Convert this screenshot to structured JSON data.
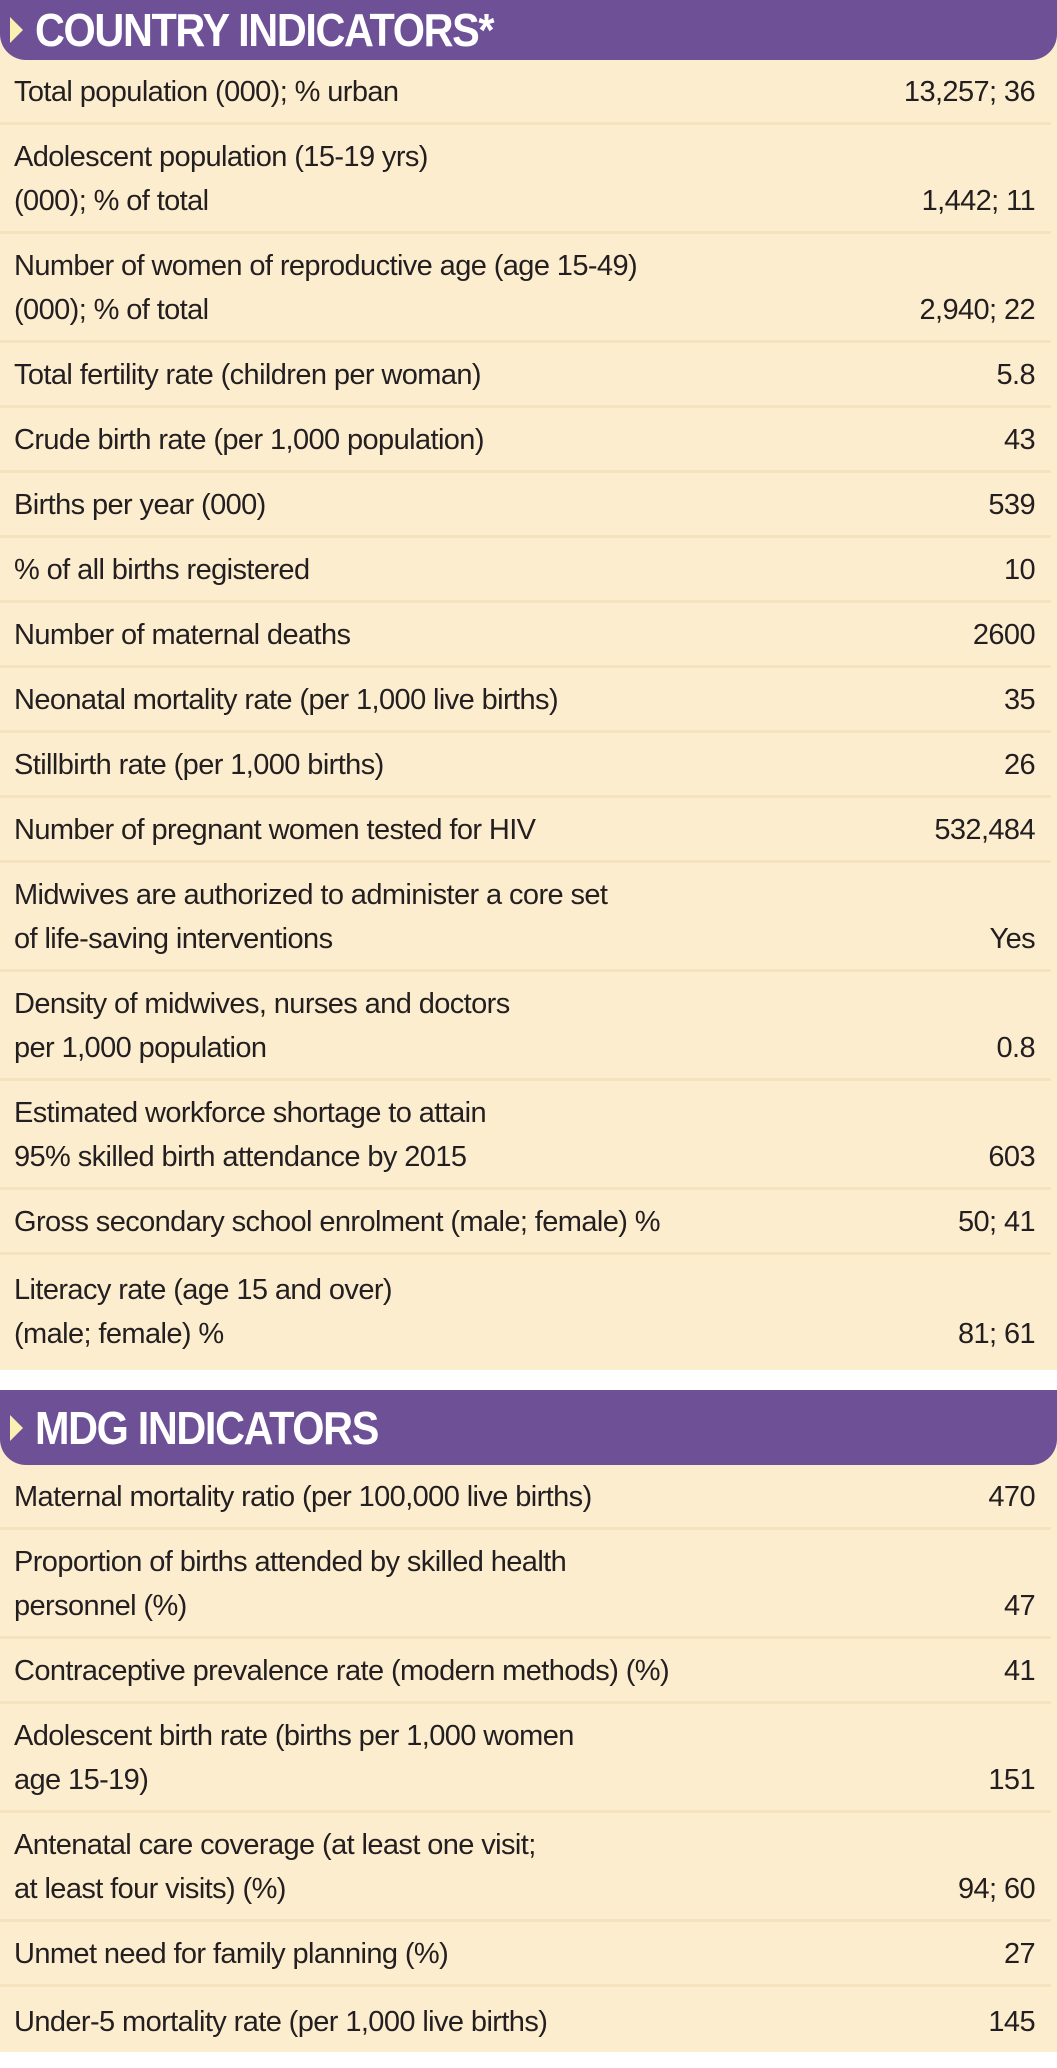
{
  "sections": [
    {
      "title": "COUNTRY INDICATORS*",
      "rows": [
        {
          "label": "Total population (000); % urban",
          "value": "13,257; 36"
        },
        {
          "label": "Adolescent population (15-19 yrs)\n(000); % of total",
          "value": "1,442; 11"
        },
        {
          "label": "Number of women of reproductive age (age 15-49)\n(000); % of total",
          "value": "2,940; 22"
        },
        {
          "label": "Total fertility rate (children per woman)",
          "value": "5.8"
        },
        {
          "label": "Crude birth rate (per 1,000 population)",
          "value": "43"
        },
        {
          "label": "Births per year (000)",
          "value": "539"
        },
        {
          "label": "% of all births registered",
          "value": "10"
        },
        {
          "label": "Number of maternal deaths",
          "value": "2600"
        },
        {
          "label": "Neonatal mortality rate (per 1,000 live births)",
          "value": "35"
        },
        {
          "label": "Stillbirth rate (per 1,000 births)",
          "value": "26"
        },
        {
          "label": "Number of pregnant women tested for HIV",
          "value": "532,484"
        },
        {
          "label": "Midwives are authorized to administer a core set\nof life-saving interventions",
          "value": "Yes"
        },
        {
          "label": "Density of midwives, nurses and doctors\nper 1,000 population",
          "value": "0.8"
        },
        {
          "label": "Estimated workforce shortage to attain\n95% skilled birth attendance by 2015",
          "value": "603"
        },
        {
          "label": "Gross secondary school enrolment (male; female) %",
          "value": "50; 41"
        },
        {
          "label": "Literacy rate (age 15 and over)\n(male; female) %",
          "value": "81; 61"
        }
      ]
    },
    {
      "title": "MDG INDICATORS",
      "rows": [
        {
          "label": "Maternal mortality ratio (per 100,000 live births)",
          "value": "470"
        },
        {
          "label": "Proportion of births attended by skilled health\npersonnel (%)",
          "value": "47"
        },
        {
          "label": "Contraceptive prevalence rate (modern methods) (%)",
          "value": "41"
        },
        {
          "label": "Adolescent birth rate (births per 1,000 women\nage 15-19)",
          "value": "151"
        },
        {
          "label": "Antenatal care coverage (at least one visit;\nat least four visits) (%)",
          "value": "94; 60"
        },
        {
          "label": "Unmet need for family planning (%)",
          "value": "27"
        },
        {
          "label": "Under-5 mortality rate (per 1,000 live births)",
          "value": "145"
        }
      ]
    }
  ]
}
